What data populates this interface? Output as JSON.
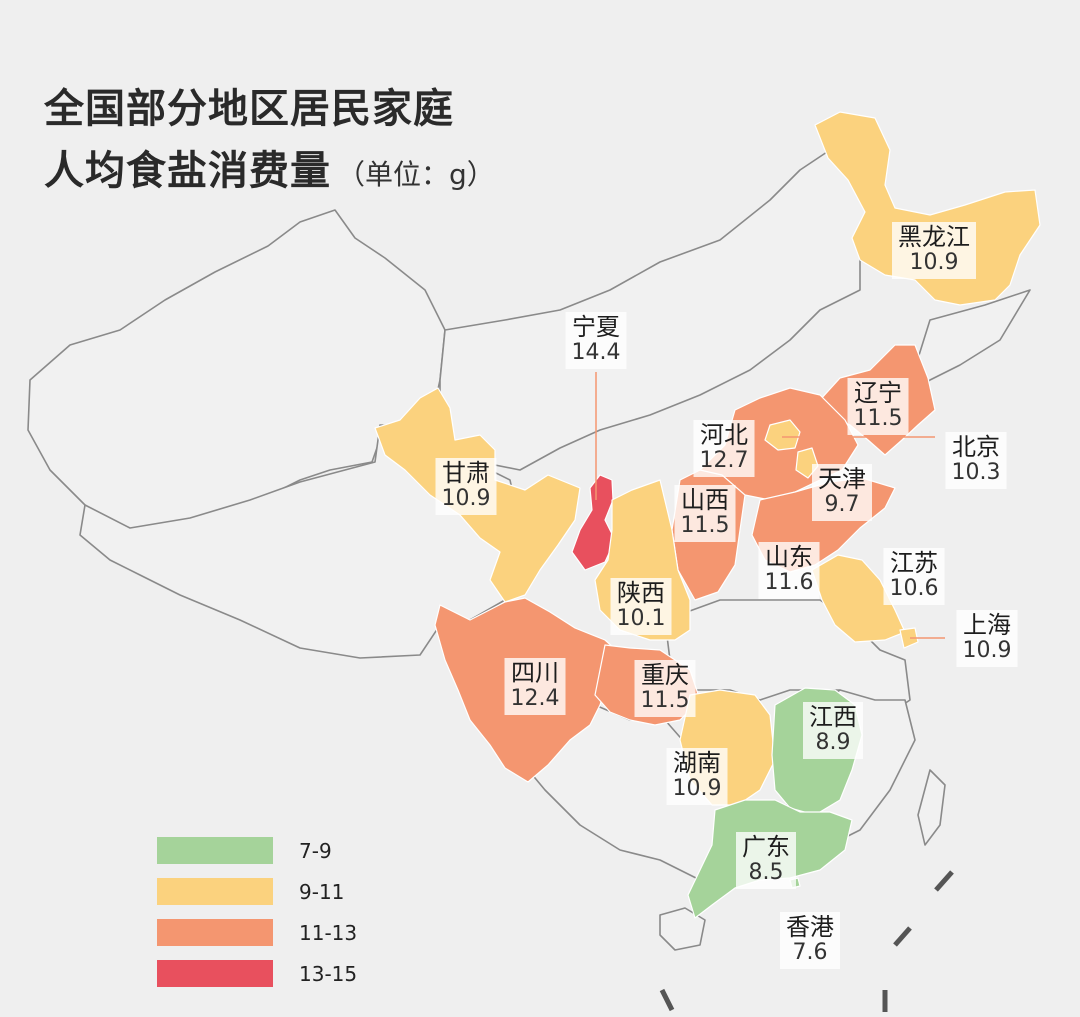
{
  "title": {
    "line1": "全国部分地区居民家庭",
    "line2": "人均食盐消费量",
    "unit": "（单位：g）"
  },
  "colors": {
    "c7_9": "#a5d39a",
    "c9_11": "#fbd27e",
    "c11_13": "#f49670",
    "c13_15": "#e8505e",
    "base": "#f1f1f1",
    "border": "#8a8a8a"
  },
  "regions": [
    {
      "key": "heilongjiang",
      "name": "黑龙江",
      "value": 10.9
    },
    {
      "key": "ningxia",
      "name": "宁夏",
      "value": 14.4
    },
    {
      "key": "liaoning",
      "name": "辽宁",
      "value": 11.5
    },
    {
      "key": "hebei",
      "name": "河北",
      "value": 12.7
    },
    {
      "key": "beijing",
      "name": "北京",
      "value": 10.3
    },
    {
      "key": "gansu",
      "name": "甘肃",
      "value": 10.9
    },
    {
      "key": "tianjin",
      "name": "天津",
      "value": 9.7
    },
    {
      "key": "shanxi",
      "name": "山西",
      "value": 11.5
    },
    {
      "key": "shandong",
      "name": "山东",
      "value": 11.6
    },
    {
      "key": "jiangsu",
      "name": "江苏",
      "value": 10.6
    },
    {
      "key": "shaanxi",
      "name": "陕西",
      "value": 10.1
    },
    {
      "key": "shanghai",
      "name": "上海",
      "value": 10.9
    },
    {
      "key": "sichuan",
      "name": "四川",
      "value": 12.4
    },
    {
      "key": "chongqing",
      "name": "重庆",
      "value": 11.5
    },
    {
      "key": "jiangxi",
      "name": "江西",
      "value": 8.9
    },
    {
      "key": "hunan",
      "name": "湖南",
      "value": 10.9
    },
    {
      "key": "guangdong",
      "name": "广东",
      "value": 8.5
    },
    {
      "key": "hongkong",
      "name": "香港",
      "value": 7.6
    }
  ],
  "legend": [
    {
      "label": "7-9",
      "color": "#a5d39a"
    },
    {
      "label": "9-11",
      "color": "#fbd27e"
    },
    {
      "label": "11-13",
      "color": "#f49670"
    },
    {
      "label": "13-15",
      "color": "#e8505e"
    }
  ]
}
